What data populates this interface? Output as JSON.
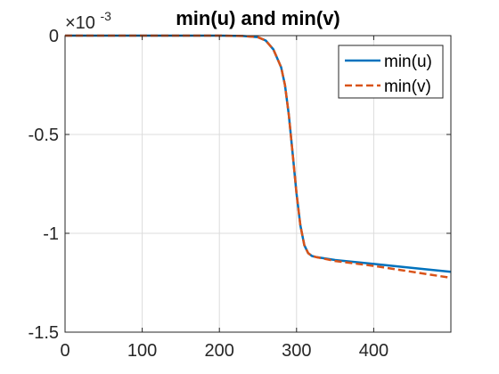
{
  "chart_data": {
    "type": "line",
    "title": "min(u) and min(v)",
    "xlabel": "",
    "ylabel": "",
    "xlim": [
      0,
      500
    ],
    "ylim": [
      -1.5,
      0
    ],
    "y_exponent_label": {
      "prefix": "×10",
      "exponent": "-3"
    },
    "x_ticks": [
      {
        "value": 0,
        "label": "0"
      },
      {
        "value": 100,
        "label": "100"
      },
      {
        "value": 200,
        "label": "200"
      },
      {
        "value": 300,
        "label": "300"
      },
      {
        "value": 400,
        "label": "400"
      }
    ],
    "y_ticks": [
      {
        "value": 0,
        "label": "0"
      },
      {
        "value": -0.5,
        "label": "-0.5"
      },
      {
        "value": -1,
        "label": "-1"
      },
      {
        "value": -1.5,
        "label": "-1.5"
      }
    ],
    "grid": true,
    "legend_position": "top-right",
    "series": [
      {
        "name": "min(u)",
        "color": "#0072BD",
        "style": "solid",
        "x": [
          0,
          200,
          230,
          250,
          260,
          270,
          280,
          285,
          290,
          295,
          300,
          305,
          310,
          315,
          320,
          325,
          350,
          400,
          450,
          500
        ],
        "y": [
          0,
          0,
          -0.002,
          -0.008,
          -0.025,
          -0.07,
          -0.16,
          -0.25,
          -0.4,
          -0.6,
          -0.8,
          -0.96,
          -1.06,
          -1.1,
          -1.115,
          -1.12,
          -1.135,
          -1.155,
          -1.175,
          -1.195
        ]
      },
      {
        "name": "min(v)",
        "color": "#D95319",
        "style": "dashed",
        "x": [
          0,
          200,
          230,
          250,
          260,
          270,
          280,
          285,
          290,
          295,
          300,
          305,
          310,
          315,
          320,
          325,
          350,
          400,
          450,
          500
        ],
        "y": [
          0,
          0,
          -0.002,
          -0.008,
          -0.025,
          -0.07,
          -0.16,
          -0.25,
          -0.4,
          -0.6,
          -0.8,
          -0.96,
          -1.06,
          -1.1,
          -1.115,
          -1.12,
          -1.14,
          -1.165,
          -1.195,
          -1.225
        ]
      }
    ]
  }
}
